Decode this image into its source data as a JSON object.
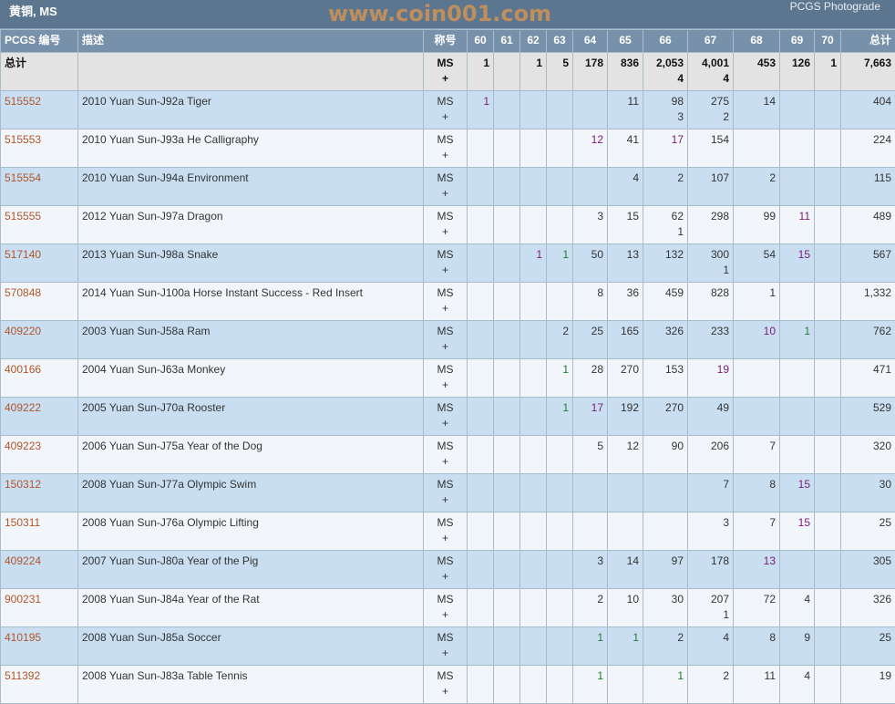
{
  "header": {
    "title": "黄铜, MS",
    "brand": "PCGS Photograde"
  },
  "columns": [
    "PCGS 编号",
    "描述",
    "称号",
    "60",
    "61",
    "62",
    "63",
    "64",
    "65",
    "66",
    "67",
    "68",
    "69",
    "70",
    "总计"
  ],
  "total_row": [
    "总计",
    "",
    "MS\n+",
    "1",
    "",
    "1",
    "5",
    "178",
    "836",
    "2,053\n4",
    "4,001\n4",
    "453",
    "126",
    "1",
    "7,663"
  ],
  "rows": [
    [
      "515552",
      "2010 Yuan Sun-J92a Tiger",
      "MS\n+",
      {
        "v": "1",
        "c": "p"
      },
      "",
      "",
      "",
      "",
      "11",
      "98\n3",
      "275\n2",
      "14",
      "",
      "",
      "404"
    ],
    [
      "515553",
      "2010 Yuan Sun-J93a He Calligraphy",
      "MS\n+",
      "",
      "",
      "",
      "",
      {
        "v": "12",
        "c": "p"
      },
      "41",
      {
        "v": "17",
        "c": "p"
      },
      "154",
      "",
      "",
      "",
      "224"
    ],
    [
      "515554",
      "2010 Yuan Sun-J94a Environment",
      "MS\n+",
      "",
      "",
      "",
      "",
      "",
      "4",
      "2",
      "107",
      "2",
      "",
      "",
      "115"
    ],
    [
      "515555",
      "2012 Yuan Sun-J97a Dragon",
      "MS\n+",
      "",
      "",
      "",
      "",
      "3",
      "15",
      "62\n1",
      "298",
      "99",
      {
        "v": "11",
        "c": "p"
      },
      "",
      "489"
    ],
    [
      "517140",
      "2013 Yuan Sun-J98a Snake",
      "MS\n+",
      "",
      "",
      {
        "v": "1",
        "c": "p"
      },
      {
        "v": "1",
        "c": "g"
      },
      "50",
      "13",
      "132",
      "300\n1",
      "54",
      {
        "v": "15",
        "c": "p"
      },
      "",
      "567"
    ],
    [
      "570848",
      "2014 Yuan Sun-J100a Horse Instant Success - Red Insert",
      "MS\n+",
      "",
      "",
      "",
      "",
      "8",
      "36",
      "459",
      "828",
      "1",
      "",
      "",
      "1,332"
    ],
    [
      "409220",
      "2003 Yuan Sun-J58a Ram",
      "MS\n+",
      "",
      "",
      "",
      "2",
      "25",
      "165",
      "326",
      "233",
      {
        "v": "10",
        "c": "p"
      },
      {
        "v": "1",
        "c": "g"
      },
      "",
      "762"
    ],
    [
      "400166",
      "2004 Yuan Sun-J63a Monkey",
      "MS\n+",
      "",
      "",
      "",
      {
        "v": "1",
        "c": "g"
      },
      "28",
      "270",
      "153",
      {
        "v": "19",
        "c": "p"
      },
      "",
      "",
      "",
      "471"
    ],
    [
      "409222",
      "2005 Yuan Sun-J70a Rooster",
      "MS\n+",
      "",
      "",
      "",
      {
        "v": "1",
        "c": "g"
      },
      {
        "v": "17",
        "c": "p"
      },
      "192",
      "270",
      "49",
      "",
      "",
      "",
      "529"
    ],
    [
      "409223",
      "2006 Yuan Sun-J75a Year of the Dog",
      "MS\n+",
      "",
      "",
      "",
      "",
      "5",
      "12",
      "90",
      "206",
      "7",
      "",
      "",
      "320"
    ],
    [
      "150312",
      "2008 Yuan Sun-J77a Olympic Swim",
      "MS\n+",
      "",
      "",
      "",
      "",
      "",
      "",
      "",
      "7",
      "8",
      {
        "v": "15",
        "c": "p"
      },
      "",
      "30"
    ],
    [
      "150311",
      "2008 Yuan Sun-J76a Olympic Lifting",
      "MS\n+",
      "",
      "",
      "",
      "",
      "",
      "",
      "",
      "3",
      "7",
      {
        "v": "15",
        "c": "p"
      },
      "",
      "25"
    ],
    [
      "409224",
      "2007 Yuan Sun-J80a Year of the Pig",
      "MS\n+",
      "",
      "",
      "",
      "",
      "3",
      "14",
      "97",
      "178",
      {
        "v": "13",
        "c": "p"
      },
      "",
      "",
      "305"
    ],
    [
      "900231",
      "2008 Yuan Sun-J84a Year of the Rat",
      "MS\n+",
      "",
      "",
      "",
      "",
      "2",
      "10",
      "30",
      "207\n1",
      "72",
      "4",
      "",
      "326"
    ],
    [
      "410195",
      "2008 Yuan Sun-J85a Soccer",
      "MS\n+",
      "",
      "",
      "",
      "",
      {
        "v": "1",
        "c": "g"
      },
      {
        "v": "1",
        "c": "g"
      },
      "2",
      "4",
      "8",
      "9",
      "",
      "25"
    ],
    [
      "511392",
      "2008 Yuan Sun-J83a Table Tennis",
      "MS\n+",
      "",
      "",
      "",
      "",
      {
        "v": "1",
        "c": "g"
      },
      "",
      {
        "v": "1",
        "c": "g"
      },
      "2",
      "11",
      "4",
      "",
      "19"
    ]
  ],
  "watermark": "www.coin001.com"
}
